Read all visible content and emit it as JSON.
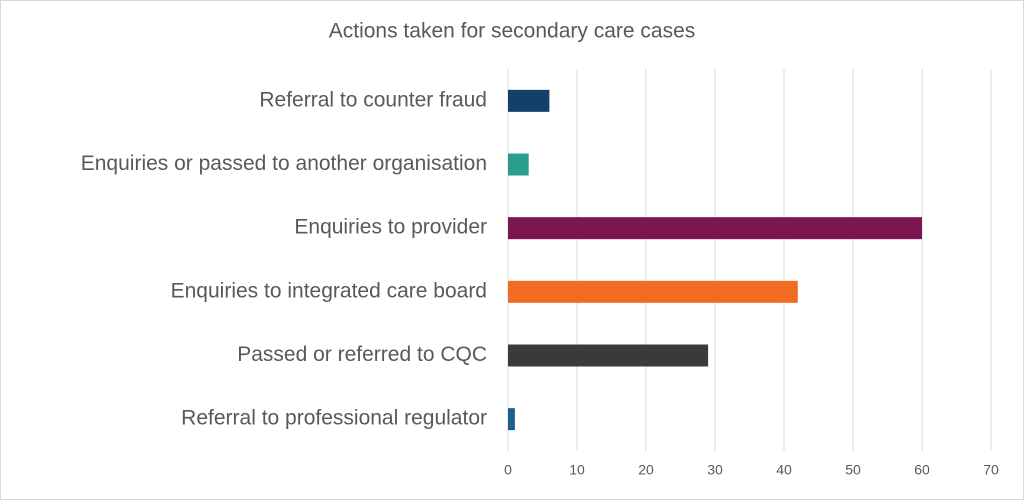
{
  "chart_data": {
    "type": "hbar",
    "title": "Actions taken for secondary care cases",
    "categories": [
      "Referral to counter fraud",
      "Enquiries or passed to another organisation",
      "Enquiries to provider",
      "Enquiries to integrated care board",
      "Passed or referred to CQC",
      "Referral to professional regulator"
    ],
    "values": [
      6,
      3,
      60,
      42,
      29,
      1
    ],
    "colors": [
      "#133f6b",
      "#2a9d8f",
      "#7b1650",
      "#f26b22",
      "#3a3a3a",
      "#1d5f8a"
    ],
    "xlim": [
      0,
      70
    ],
    "xticks": [
      0,
      10,
      20,
      30,
      40,
      50,
      60,
      70
    ],
    "grid": true
  }
}
